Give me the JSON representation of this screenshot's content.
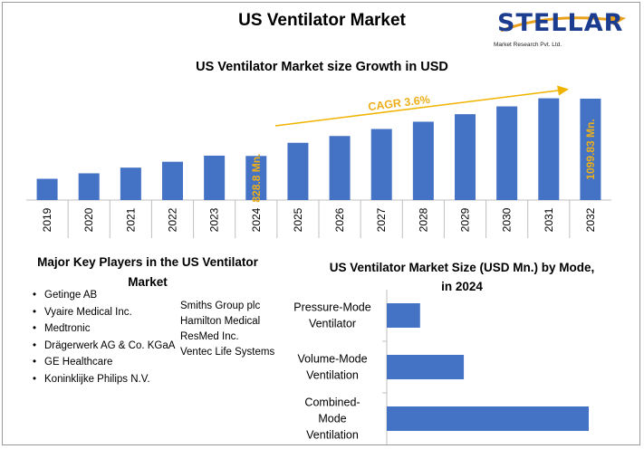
{
  "title": "US Ventilator Market",
  "logo": {
    "name": "STELLAR",
    "tagline": "Market Research Pvt. Ltd."
  },
  "chart_data": [
    {
      "type": "bar",
      "title": "US Ventilator Market size Growth in USD",
      "categories": [
        "2019",
        "2020",
        "2021",
        "2022",
        "2023",
        "2024",
        "2025",
        "2026",
        "2027",
        "2028",
        "2029",
        "2030",
        "2031",
        "2032"
      ],
      "values": [
        720.7,
        746.6,
        773.5,
        801.3,
        830.2,
        828.8,
        891.0,
        923.1,
        956.3,
        990.7,
        1026.4,
        1063.3,
        1101.6,
        1099.83
      ],
      "data_labels": [
        {
          "category": "2024",
          "text": "828.8 Mn."
        },
        {
          "category": "2032",
          "text": "1099.83 Mn."
        }
      ],
      "annotation": "CAGR 3.6%",
      "color": "#4472c4",
      "label_color": "#ecaf1a",
      "xlabel": "",
      "ylabel": ""
    },
    {
      "type": "bar",
      "orientation": "horizontal",
      "title": "US Ventilator Market Size (USD Mn.) by Mode, in 2024",
      "categories": [
        [
          "Pressure-Mode",
          "Ventilator"
        ],
        [
          "Volume-Mode",
          "Ventilation"
        ],
        [
          "Combined-",
          "Mode",
          "Ventilation"
        ]
      ],
      "values": [
        80,
        185,
        485
      ],
      "color": "#4472c4"
    }
  ],
  "key_players": {
    "title": "Major Key Players in the US Ventilator Market",
    "list1": [
      "Getinge AB",
      "Vyaire Medical Inc.",
      "Medtronic",
      "Drägerwerk AG & Co. KGaA",
      "GE Healthcare",
      "Koninklijke Philips N.V."
    ],
    "list2": [
      "Smiths Group plc",
      "Hamilton Medical",
      "ResMed Inc.",
      "Ventec Life Systems"
    ]
  }
}
